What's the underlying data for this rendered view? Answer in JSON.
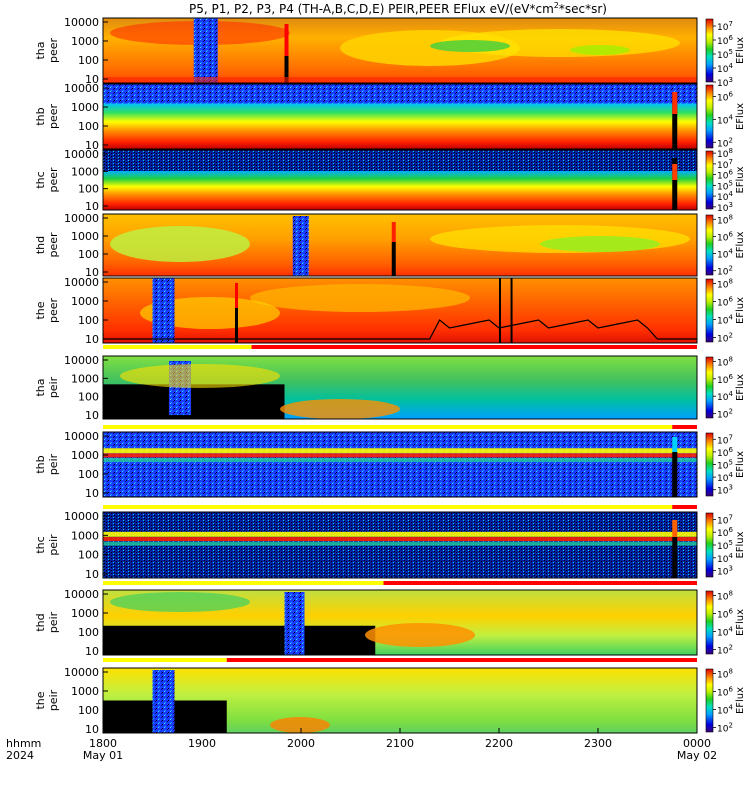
{
  "title_parts": [
    "P5, P1, P2, P3, P4 (TH-A,B,C,D,E) PEIR,PEER EFlux eV/(eV*cm",
    "2",
    "*sec*sr)"
  ],
  "chart_data": {
    "type": "heatmap",
    "x_ticks": [
      "1800",
      "1900",
      "2000",
      "2100",
      "2200",
      "2300",
      "0000"
    ],
    "x_date_labels": [
      {
        "at": "1800",
        "label": "May 01"
      },
      {
        "at": "0000",
        "label": "May 02"
      }
    ],
    "x_corner_labels": [
      "hhmm",
      "2024"
    ],
    "x_range": [
      "2024-05-01 18:00",
      "2024-05-02 00:00"
    ],
    "y_scale": "log",
    "colorbar_label": "EFlux",
    "panels": [
      {
        "probe": "tha",
        "type": "peer",
        "y_ticks": [
          "10000",
          "1000",
          "100",
          "10"
        ],
        "cb_ticks": [
          "10",
          "7",
          "10",
          "6",
          "10",
          "5",
          "10",
          "4",
          "10",
          "3"
        ],
        "cb_range": [
          3,
          7.5
        ],
        "status_bar": null
      },
      {
        "probe": "thb",
        "type": "peer",
        "y_ticks": [
          "10000",
          "1000",
          "100",
          "10"
        ],
        "cb_ticks": [
          "10",
          "6",
          "10",
          "4",
          "10",
          "2"
        ],
        "cb_range": [
          1.5,
          7
        ],
        "status_bar": null
      },
      {
        "probe": "thc",
        "type": "peer",
        "y_ticks": [
          "10000",
          "1000",
          "100",
          "10"
        ],
        "cb_ticks": [
          "10",
          "8",
          "10",
          "7",
          "10",
          "6",
          "10",
          "5",
          "10",
          "4",
          "10",
          "3"
        ],
        "cb_range": [
          2.8,
          8.2
        ],
        "status_bar": null
      },
      {
        "probe": "thd",
        "type": "peer",
        "y_ticks": [
          "10000",
          "1000",
          "100",
          "10"
        ],
        "cb_ticks": [
          "10",
          "8",
          "10",
          "6",
          "10",
          "4",
          "10",
          "2"
        ],
        "cb_range": [
          1.5,
          8.5
        ],
        "status_bar": null
      },
      {
        "probe": "the",
        "type": "peer",
        "y_ticks": [
          "10000",
          "1000",
          "100",
          "10"
        ],
        "cb_ticks": [
          "10",
          "8",
          "10",
          "6",
          "10",
          "4",
          "10",
          "2"
        ],
        "cb_range": [
          1.5,
          8.5
        ],
        "status_bar": {
          "yellow_until": "1930",
          "red_from": "1930"
        }
      },
      {
        "probe": "tha",
        "type": "peir",
        "y_ticks": [
          "10000",
          "1000",
          "100",
          "10"
        ],
        "cb_ticks": [
          "10",
          "8",
          "10",
          "6",
          "10",
          "4",
          "10",
          "2"
        ],
        "cb_range": [
          1.5,
          8.5
        ],
        "status_bar": {
          "yellow_until": "2345",
          "red_from": "2345"
        }
      },
      {
        "probe": "thb",
        "type": "peir",
        "y_ticks": [
          "10000",
          "1000",
          "100",
          "10"
        ],
        "cb_ticks": [
          "10",
          "7",
          "10",
          "6",
          "10",
          "5",
          "10",
          "4",
          "10",
          "3"
        ],
        "cb_range": [
          2.5,
          7.5
        ],
        "status_bar": {
          "yellow_until": "2345",
          "red_from": "2345"
        }
      },
      {
        "probe": "thc",
        "type": "peir",
        "y_ticks": [
          "10000",
          "1000",
          "100",
          "10"
        ],
        "cb_ticks": [
          "10",
          "7",
          "10",
          "6",
          "10",
          "5",
          "10",
          "4",
          "10",
          "3"
        ],
        "cb_range": [
          2.5,
          7.5
        ],
        "status_bar": {
          "yellow_until": "2050",
          "red_from": "2050"
        }
      },
      {
        "probe": "thd",
        "type": "peir",
        "y_ticks": [
          "10000",
          "1000",
          "100",
          "10"
        ],
        "cb_ticks": [
          "10",
          "8",
          "10",
          "6",
          "10",
          "4",
          "10",
          "2"
        ],
        "cb_range": [
          1.5,
          8.5
        ],
        "status_bar": {
          "yellow_until": "1915",
          "red_from": "1915"
        }
      },
      {
        "probe": "the",
        "type": "peir",
        "y_ticks": [
          "10000",
          "1000",
          "100",
          "10"
        ],
        "cb_ticks": [
          "10",
          "8",
          "10",
          "6",
          "10",
          "4",
          "10",
          "2"
        ],
        "cb_range": [
          1.5,
          8.5
        ],
        "status_bar": null
      }
    ]
  }
}
